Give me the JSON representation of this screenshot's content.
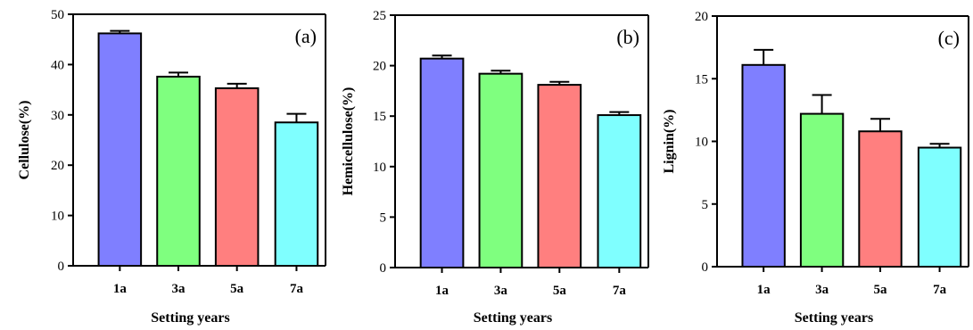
{
  "chart_data": [
    {
      "type": "bar",
      "panel_label": "(a)",
      "categories": [
        "1a",
        "3a",
        "5a",
        "7a"
      ],
      "values": [
        46.2,
        37.6,
        35.3,
        28.5
      ],
      "errors": [
        0.5,
        0.8,
        0.9,
        1.7
      ],
      "colors": [
        "#7f7fff",
        "#7fff7f",
        "#ff7f7f",
        "#7fffff"
      ],
      "xlabel": "Setting years",
      "ylabel": "Cellulose(%)",
      "ylim": [
        0,
        50
      ],
      "yticks": [
        0,
        10,
        20,
        30,
        40,
        50
      ],
      "grid": false
    },
    {
      "type": "bar",
      "panel_label": "(b)",
      "categories": [
        "1a",
        "3a",
        "5a",
        "7a"
      ],
      "values": [
        20.7,
        19.2,
        18.1,
        15.1
      ],
      "errors": [
        0.3,
        0.3,
        0.3,
        0.3
      ],
      "colors": [
        "#7f7fff",
        "#7fff7f",
        "#ff7f7f",
        "#7fffff"
      ],
      "xlabel": "Setting years",
      "ylabel": "Hemicellulose(%)",
      "ylim": [
        0,
        25
      ],
      "yticks": [
        0,
        5,
        10,
        15,
        20,
        25
      ],
      "grid": false
    },
    {
      "type": "bar",
      "panel_label": "(c)",
      "categories": [
        "1a",
        "3a",
        "5a",
        "7a"
      ],
      "values": [
        16.1,
        12.2,
        10.8,
        9.5
      ],
      "errors": [
        1.2,
        1.5,
        1.0,
        0.3
      ],
      "colors": [
        "#7f7fff",
        "#7fff7f",
        "#ff7f7f",
        "#7fffff"
      ],
      "xlabel": "Setting years",
      "ylabel": "Lignin(%)",
      "ylim": [
        0,
        20
      ],
      "yticks": [
        0,
        5,
        10,
        15,
        20
      ],
      "grid": false
    }
  ]
}
